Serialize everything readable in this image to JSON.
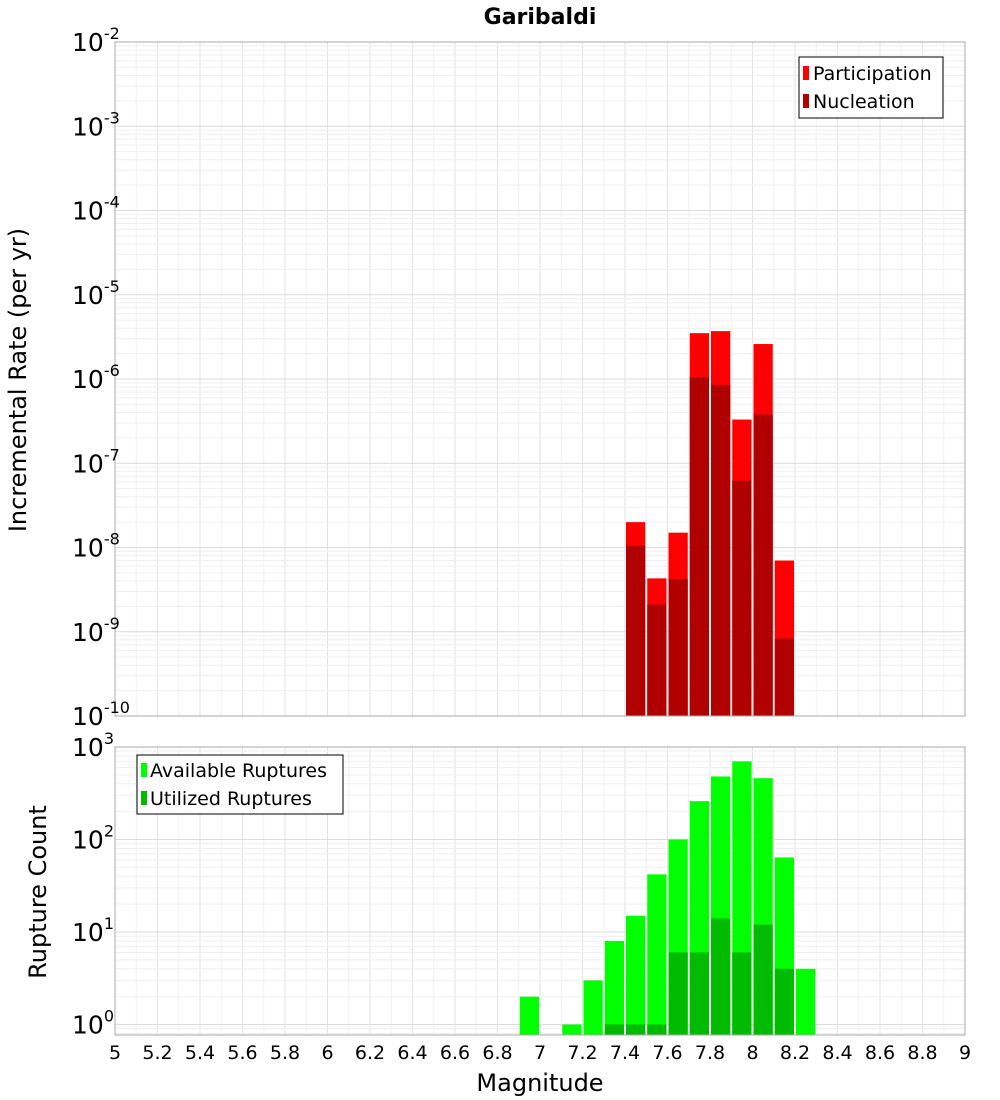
{
  "chart_data": [
    {
      "type": "bar",
      "title": "Garibaldi",
      "ylabel": "Incremental Rate (per yr)",
      "y_scale": "log",
      "ylim": [
        1e-10,
        0.01
      ],
      "xlim": [
        5,
        9
      ],
      "grid": true,
      "legend_position": "top-right",
      "series": [
        {
          "name": "Participation",
          "color": "#ff0000",
          "x": [
            7.45,
            7.55,
            7.65,
            7.75,
            7.85,
            7.95,
            8.05,
            8.15
          ],
          "values": [
            2e-08,
            4.3e-09,
            1.5e-08,
            3.5e-06,
            3.7e-06,
            3.3e-07,
            2.6e-06,
            7e-09
          ]
        },
        {
          "name": "Nucleation",
          "color": "#b00000",
          "x": [
            7.45,
            7.55,
            7.65,
            7.75,
            7.85,
            7.95,
            8.05,
            8.15
          ],
          "values": [
            1.05e-08,
            2.1e-09,
            4.2e-09,
            1.05e-06,
            8.5e-07,
            6.2e-08,
            3.8e-07,
            8.3e-10
          ]
        }
      ],
      "y_ticks": [
        {
          "base": "10",
          "exp": "-2"
        },
        {
          "base": "10",
          "exp": "-3"
        },
        {
          "base": "10",
          "exp": "-4"
        },
        {
          "base": "10",
          "exp": "-5"
        },
        {
          "base": "10",
          "exp": "-6"
        },
        {
          "base": "10",
          "exp": "-7"
        },
        {
          "base": "10",
          "exp": "-8"
        },
        {
          "base": "10",
          "exp": "-9"
        },
        {
          "base": "10",
          "exp": "-10"
        }
      ]
    },
    {
      "type": "bar",
      "xlabel": "Magnitude",
      "ylabel": "Rupture Count",
      "y_scale": "log",
      "ylim": [
        0.77,
        1000
      ],
      "xlim": [
        5,
        9
      ],
      "grid": true,
      "legend_position": "top-left",
      "series": [
        {
          "name": "Available Ruptures",
          "color": "#00ff00",
          "x": [
            6.95,
            7.15,
            7.25,
            7.35,
            7.45,
            7.55,
            7.65,
            7.75,
            7.85,
            7.95,
            8.05,
            8.15,
            8.25
          ],
          "values": [
            2,
            1,
            3,
            8,
            15,
            42,
            100,
            260,
            480,
            700,
            460,
            64,
            4
          ]
        },
        {
          "name": "Utilized Ruptures",
          "color": "#00bb00",
          "x": [
            7.35,
            7.45,
            7.55,
            7.65,
            7.75,
            7.85,
            7.95,
            8.05,
            8.15
          ],
          "values": [
            1,
            1,
            1,
            6,
            6,
            14,
            6,
            12,
            4
          ]
        }
      ],
      "y_ticks": [
        {
          "base": "10",
          "exp": "3"
        },
        {
          "base": "10",
          "exp": "2"
        },
        {
          "base": "10",
          "exp": "1"
        },
        {
          "base": "10",
          "exp": "0"
        }
      ],
      "x_ticks": [
        "5",
        "5.2",
        "5.4",
        "5.6",
        "5.8",
        "6",
        "6.2",
        "6.4",
        "6.6",
        "6.8",
        "7",
        "7.2",
        "7.4",
        "7.6",
        "7.8",
        "8",
        "8.2",
        "8.4",
        "8.6",
        "8.8",
        "9"
      ]
    }
  ]
}
